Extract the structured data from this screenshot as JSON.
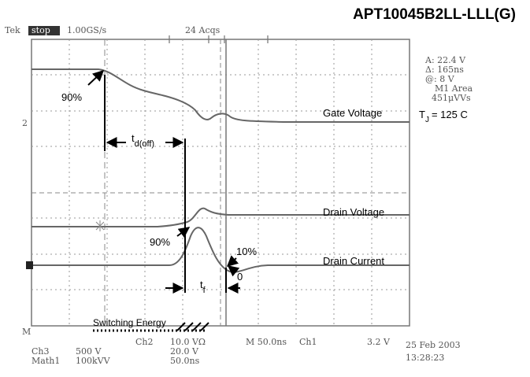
{
  "header": {
    "title": "APT10045B2LL-LLL(G)"
  },
  "scope": {
    "top": [
      "Tek",
      "stop",
      "1.00GS/s",
      "24 Acqs"
    ],
    "markers": [
      "2",
      "M"
    ],
    "readout": [
      "A: 22.4 V",
      "Δ: 165ns",
      "@: 8 V",
      "M1 Area",
      "451μVVs"
    ],
    "tj": {
      "symbol": "T",
      "subscript": "J",
      "value": "= 125 C"
    },
    "bottom": [
      "Ch3",
      "500 V",
      "Ch2",
      "10.0 VΩ",
      "20.0 V",
      "M 50.0ns",
      "Ch1",
      "3.2 V",
      "Math1",
      "100kVV",
      "50.0ns",
      "25 Feb 2003",
      "13:28:23"
    ]
  },
  "labels": {
    "gate_90": "90%",
    "drain_90": "90%",
    "drain_10": "10%",
    "zero": "0",
    "td_off": {
      "symbol": "t",
      "subscript": "d(off)"
    },
    "tf": {
      "symbol": "t",
      "subscript": "f"
    },
    "gate_voltage": "Gate Voltage",
    "drain_voltage": "Drain Voltage",
    "drain_current": "Drain Current",
    "switching_energy": "Switching Energy"
  }
}
